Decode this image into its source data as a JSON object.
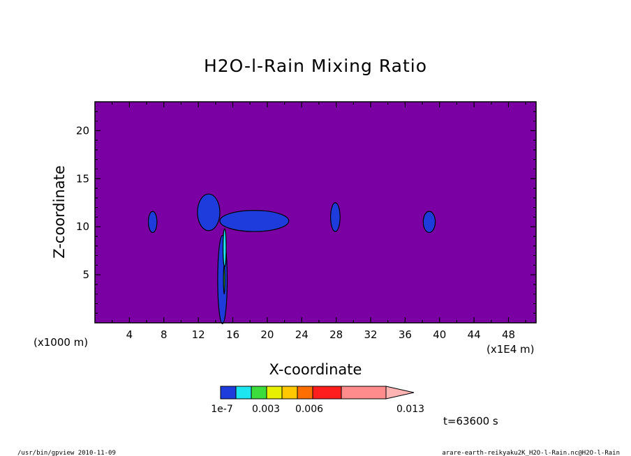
{
  "chart_data": {
    "type": "heatmap",
    "title": "H2O-l-Rain Mixing Ratio",
    "xlabel": "X-coordinate",
    "ylabel": "Z-coordinate",
    "x_unit": "(x1E4 m)",
    "y_unit": "(x1000 m)",
    "xlim": [
      0,
      51.2
    ],
    "ylim": [
      0,
      23
    ],
    "xticks": [
      4,
      8,
      12,
      16,
      20,
      24,
      28,
      32,
      36,
      40,
      44,
      48
    ],
    "yticks": [
      5,
      10,
      15,
      20
    ],
    "colorbar": {
      "labels": [
        "1e-7",
        "0.003",
        "0.006",
        "0.013"
      ],
      "colors": [
        "#1e3cdc",
        "#1ee6f0",
        "#3cdc3c",
        "#e6f000",
        "#ffc800",
        "#ff6e00",
        "#ff1e1e",
        "#ff8c8c",
        "#ffb4b4"
      ]
    },
    "background_color": "#7b00a3",
    "rain_regions": [
      {
        "cx": 6.7,
        "cy": 10.5,
        "rx": 0.5,
        "ry": 1.1,
        "level": 1
      },
      {
        "cx": 13.2,
        "cy": 11.5,
        "rx": 1.3,
        "ry": 1.9,
        "level": 1
      },
      {
        "cx": 18.5,
        "cy": 10.6,
        "rx": 4.0,
        "ry": 1.1,
        "level": 1
      },
      {
        "cx": 27.9,
        "cy": 11.0,
        "rx": 0.55,
        "ry": 1.5,
        "level": 1
      },
      {
        "cx": 38.8,
        "cy": 10.5,
        "rx": 0.7,
        "ry": 1.1,
        "level": 1
      },
      {
        "cx": 14.8,
        "cy": 4.5,
        "rx": 0.55,
        "ry": 4.6,
        "level": 1
      },
      {
        "cx": 15.05,
        "cy": 7.8,
        "rx": 0.18,
        "ry": 2.0,
        "level": 2
      },
      {
        "cx": 15.0,
        "cy": 4.5,
        "rx": 0.08,
        "ry": 1.5,
        "level": 3
      }
    ],
    "time_label": "t=63600 s"
  },
  "footer": {
    "left": "/usr/bin/gpview 2010-11-09",
    "right": "arare-earth-reikyaku2K_H2O-l-Rain.nc@H2O-l-Rain"
  }
}
